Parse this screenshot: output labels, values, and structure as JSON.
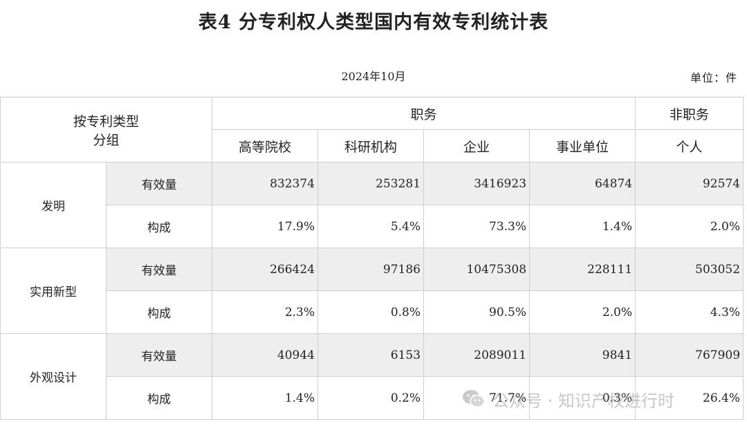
{
  "title": "表4 分专利权人类型国内有效专利统计表",
  "date": "2024年10月",
  "unit": "单位：件",
  "header": {
    "group_label_line1": "按专利类型",
    "group_label_line2": "分组",
    "service_label": "职务",
    "nonservice_label": "非职务",
    "columns": [
      "高等院校",
      "科研机构",
      "企业",
      "事业单位",
      "个人"
    ]
  },
  "rows": [
    {
      "category": "发明",
      "count_label": "有效量",
      "counts": [
        "832374",
        "253281",
        "3416923",
        "64874",
        "92574"
      ],
      "share_label": "构成",
      "shares": [
        "17.9%",
        "5.4%",
        "73.3%",
        "1.4%",
        "2.0%"
      ]
    },
    {
      "category": "实用新型",
      "count_label": "有效量",
      "counts": [
        "266424",
        "97186",
        "10475308",
        "228111",
        "503052"
      ],
      "share_label": "构成",
      "shares": [
        "2.3%",
        "0.8%",
        "90.5%",
        "2.0%",
        "4.3%"
      ]
    },
    {
      "category": "外观设计",
      "count_label": "有效量",
      "counts": [
        "40944",
        "6153",
        "2089011",
        "9841",
        "767909"
      ],
      "share_label": "构成",
      "shares": [
        "1.4%",
        "0.2%",
        "71.7%",
        "0.3%",
        "26.4%"
      ]
    }
  ],
  "watermark": {
    "icon": "wechat-icon",
    "text": "公众号 · 知识产权进行时"
  }
}
